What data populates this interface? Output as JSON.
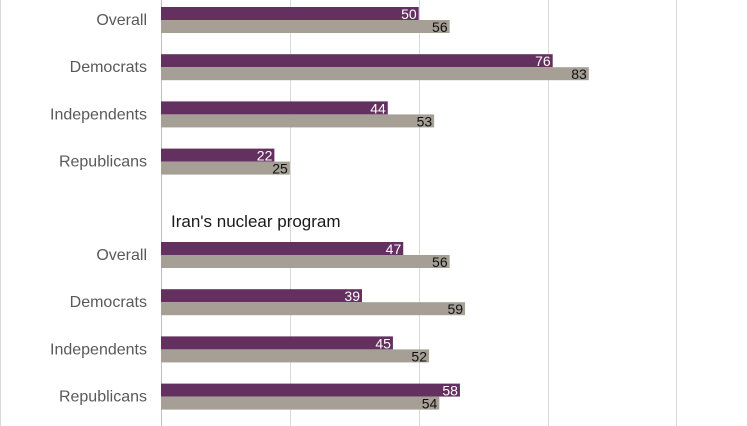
{
  "chart_data": {
    "type": "bar",
    "orientation": "horizontal",
    "xlim": [
      0,
      100
    ],
    "grid": true,
    "colors": {
      "series1": "#63305f",
      "series2": "#a59f96"
    },
    "groups": [
      {
        "title": "",
        "categories": [
          "Overall",
          "Democrats",
          "Independents",
          "Republicans"
        ],
        "series": [
          {
            "values": [
              50,
              76,
              44,
              22
            ]
          },
          {
            "values": [
              56,
              83,
              53,
              25
            ]
          }
        ]
      },
      {
        "title": "Iran's nuclear program",
        "categories": [
          "Overall",
          "Democrats",
          "Independents",
          "Republicans"
        ],
        "series": [
          {
            "values": [
              47,
              39,
              45,
              58
            ]
          },
          {
            "values": [
              56,
              59,
              52,
              54
            ]
          }
        ]
      }
    ]
  }
}
